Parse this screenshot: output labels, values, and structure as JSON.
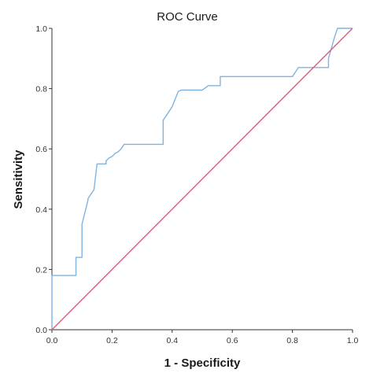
{
  "chart_data": {
    "type": "line",
    "title": "ROC Curve",
    "xlabel": "1 - Specificity",
    "ylabel": "Sensitivity",
    "xlim": [
      0,
      1
    ],
    "ylim": [
      0,
      1
    ],
    "xticks": [
      "0.0",
      "0.2",
      "0.4",
      "0.6",
      "0.8",
      "1.0"
    ],
    "yticks": [
      "0.0",
      "0.2",
      "0.4",
      "0.6",
      "0.8",
      "1.0"
    ],
    "grid": false,
    "legend": "none",
    "series": [
      {
        "color": "#7fb3e0",
        "x": [
          0.0,
          0.0,
          0.08,
          0.08,
          0.1,
          0.1,
          0.11,
          0.12,
          0.12,
          0.14,
          0.15,
          0.15,
          0.18,
          0.18,
          0.19,
          0.2,
          0.21,
          0.22,
          0.23,
          0.24,
          0.37,
          0.37,
          0.38,
          0.4,
          0.42,
          0.42,
          0.43,
          0.5,
          0.52,
          0.56,
          0.56,
          0.8,
          0.82,
          0.82,
          0.92,
          0.92,
          0.94,
          0.95,
          1.0
        ],
        "y": [
          0.0,
          0.18,
          0.18,
          0.24,
          0.24,
          0.35,
          0.39,
          0.43,
          0.435,
          0.465,
          0.55,
          0.55,
          0.55,
          0.56,
          0.57,
          0.575,
          0.585,
          0.59,
          0.6,
          0.615,
          0.615,
          0.695,
          0.71,
          0.74,
          0.79,
          0.79,
          0.795,
          0.795,
          0.81,
          0.81,
          0.84,
          0.84,
          0.87,
          0.87,
          0.87,
          0.9,
          0.97,
          1.0,
          1.0
        ]
      },
      {
        "color": "#e05a7a",
        "x": [
          0,
          1
        ],
        "y": [
          0,
          1
        ]
      }
    ]
  }
}
